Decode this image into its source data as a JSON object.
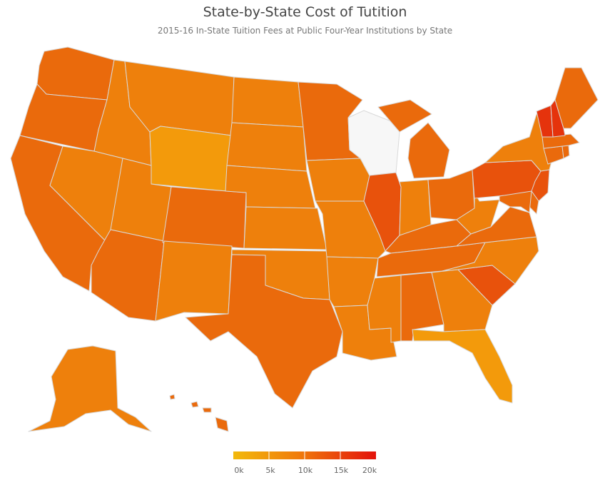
{
  "header": {
    "title": "State-by-State Cost of Tutition",
    "subtitle": "2015-16 In-State Tuition Fees at Public Four-Year Institutions by State"
  },
  "legend": {
    "labels": [
      "0k",
      "5k",
      "10k",
      "15k",
      "20k"
    ],
    "colors": [
      "#f2b90c",
      "#f07d0c",
      "#e3120b"
    ],
    "no_data_color": "#f7f7f7"
  },
  "map_data": {
    "type": "choropleth",
    "region": "United States",
    "value_range": [
      0,
      20000
    ],
    "highlighted_highest": [
      "Vermont",
      "New Hampshire"
    ],
    "no_data": [
      "Wisconsin"
    ],
    "states": [
      {
        "name": "Washington",
        "level": "high"
      },
      {
        "name": "Oregon",
        "level": "high"
      },
      {
        "name": "California",
        "level": "high"
      },
      {
        "name": "Idaho",
        "level": "mid"
      },
      {
        "name": "Nevada",
        "level": "mid"
      },
      {
        "name": "Montana",
        "level": "mid"
      },
      {
        "name": "Wyoming",
        "level": "low"
      },
      {
        "name": "Utah",
        "level": "mid"
      },
      {
        "name": "Arizona",
        "level": "high"
      },
      {
        "name": "Colorado",
        "level": "high"
      },
      {
        "name": "New Mexico",
        "level": "mid"
      },
      {
        "name": "North Dakota",
        "level": "mid"
      },
      {
        "name": "South Dakota",
        "level": "mid"
      },
      {
        "name": "Nebraska",
        "level": "mid"
      },
      {
        "name": "Kansas",
        "level": "mid"
      },
      {
        "name": "Oklahoma",
        "level": "mid"
      },
      {
        "name": "Texas",
        "level": "high"
      },
      {
        "name": "Minnesota",
        "level": "high"
      },
      {
        "name": "Iowa",
        "level": "mid"
      },
      {
        "name": "Missouri",
        "level": "mid"
      },
      {
        "name": "Arkansas",
        "level": "mid"
      },
      {
        "name": "Louisiana",
        "level": "mid"
      },
      {
        "name": "Wisconsin",
        "level": "none"
      },
      {
        "name": "Illinois",
        "level": "very-high"
      },
      {
        "name": "Michigan",
        "level": "high"
      },
      {
        "name": "Indiana",
        "level": "mid"
      },
      {
        "name": "Ohio",
        "level": "high"
      },
      {
        "name": "Kentucky",
        "level": "high"
      },
      {
        "name": "Tennessee",
        "level": "high"
      },
      {
        "name": "Mississippi",
        "level": "mid"
      },
      {
        "name": "Alabama",
        "level": "high"
      },
      {
        "name": "Georgia",
        "level": "mid"
      },
      {
        "name": "Florida",
        "level": "low"
      },
      {
        "name": "South Carolina",
        "level": "very-high"
      },
      {
        "name": "North Carolina",
        "level": "mid"
      },
      {
        "name": "Virginia",
        "level": "high"
      },
      {
        "name": "West Virginia",
        "level": "mid"
      },
      {
        "name": "Pennsylvania",
        "level": "very-high"
      },
      {
        "name": "New York",
        "level": "mid"
      },
      {
        "name": "New Jersey",
        "level": "very-high"
      },
      {
        "name": "Maryland",
        "level": "high"
      },
      {
        "name": "Delaware",
        "level": "high"
      },
      {
        "name": "Connecticut",
        "level": "high"
      },
      {
        "name": "Rhode Island",
        "level": "high"
      },
      {
        "name": "Massachusetts",
        "level": "high"
      },
      {
        "name": "Vermont",
        "level": "highest"
      },
      {
        "name": "New Hampshire",
        "level": "highest"
      },
      {
        "name": "Maine",
        "level": "high"
      },
      {
        "name": "Alaska",
        "level": "mid"
      },
      {
        "name": "Hawaii",
        "level": "high"
      }
    ]
  },
  "palette": {
    "low": "#f39a0b",
    "mid": "#ee800c",
    "high": "#ea6a0c",
    "very-high": "#e8520c",
    "highest": "#e5330c",
    "none": "#f7f7f7"
  }
}
